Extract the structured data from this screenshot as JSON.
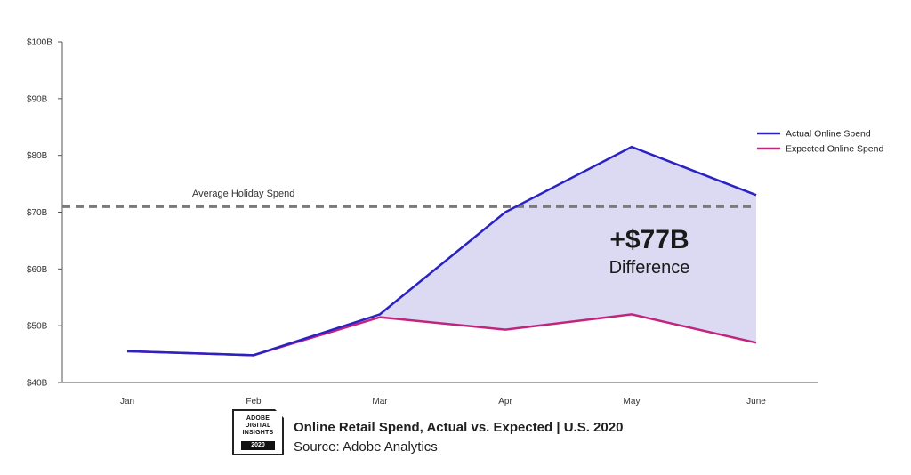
{
  "chart_data": {
    "type": "line",
    "title": "Online Retail Spend, Actual vs. Expected | U.S. 2020",
    "source": "Source: Adobe Analytics",
    "categories": [
      "Jan",
      "Feb",
      "Mar",
      "Apr",
      "May",
      "June"
    ],
    "y_ticks": [
      "$40B",
      "$50B",
      "$60B",
      "$70B",
      "$80B",
      "$90B",
      "$100B"
    ],
    "ylim": [
      40,
      100
    ],
    "series": [
      {
        "name": "Actual Online Spend",
        "color": "#2b22c4",
        "values": [
          45.5,
          44.8,
          52.0,
          70.0,
          81.5,
          73.0
        ]
      },
      {
        "name": "Expected Online Spend",
        "color": "#c2237e",
        "values": [
          45.5,
          44.8,
          51.5,
          49.3,
          52.0,
          47.0
        ]
      }
    ],
    "reference_line": {
      "label": "Average Holiday Spend",
      "value": 71.0,
      "color": "#7a7a7a",
      "style": "dashed"
    },
    "shaded_area": {
      "between": [
        "Actual Online Spend",
        "Expected Online Spend"
      ],
      "from": "Mar",
      "to": "June",
      "color": "#dcdaf3"
    },
    "annotation": {
      "value": "+$77B",
      "label": "Difference"
    },
    "legend_position": "top-right",
    "grid": false
  },
  "logo": {
    "line1": "ADOBE",
    "line2": "DIGITAL",
    "line3": "INSIGHTS",
    "year": "2020"
  }
}
